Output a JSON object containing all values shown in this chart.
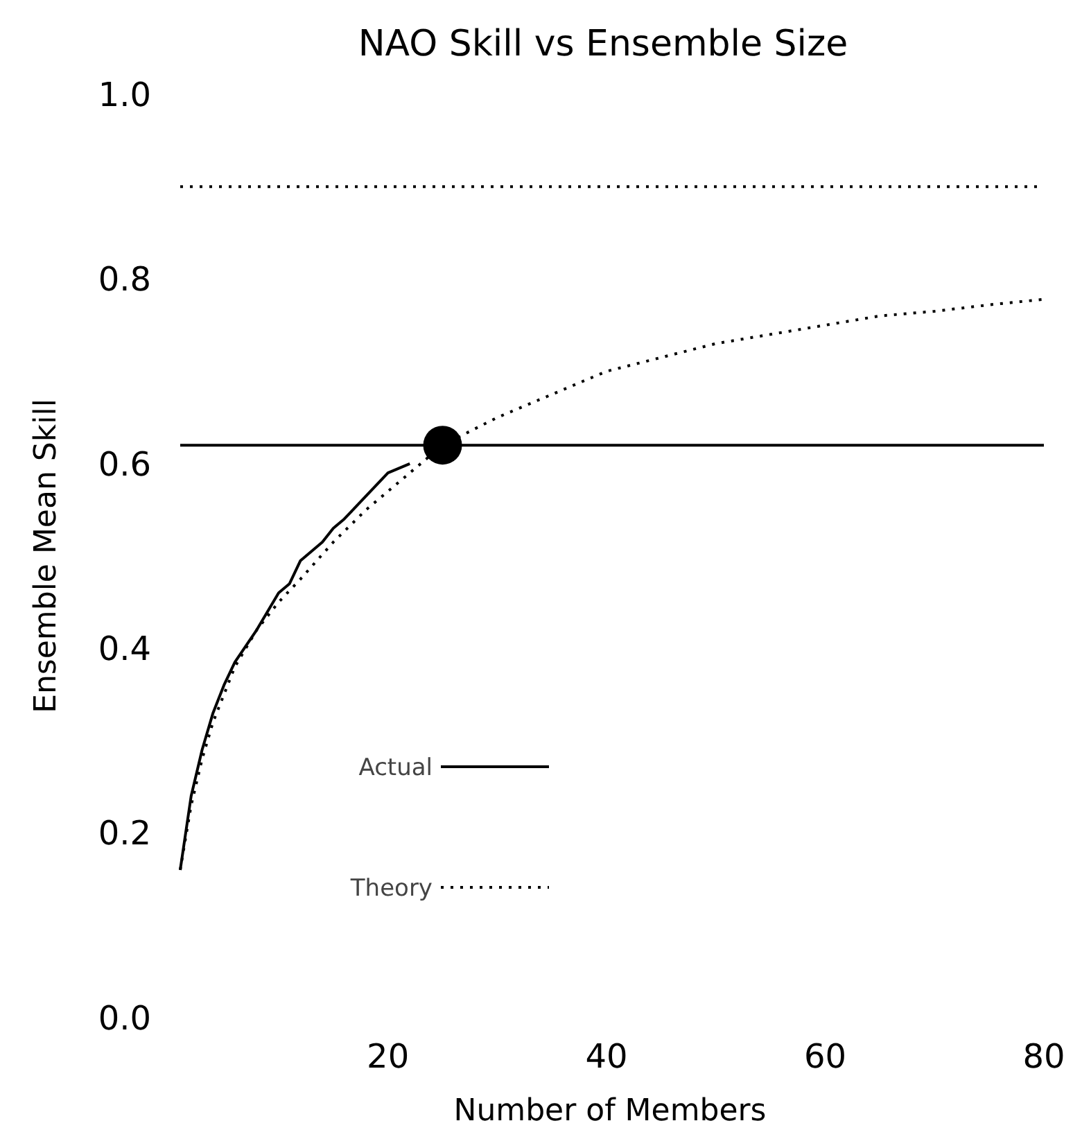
{
  "chart_data": {
    "type": "line",
    "title": "NAO Skill vs Ensemble Size",
    "xlabel": "Number of Members",
    "ylabel": "Ensemble Mean Skill",
    "xlim": [
      1,
      80
    ],
    "xticks": [
      20,
      40,
      60,
      80
    ],
    "ylim": [
      0,
      1
    ],
    "yticks": [
      {
        "value": 0,
        "label": "0.0"
      },
      {
        "value": 0.2,
        "label": "0.2"
      },
      {
        "value": 0.4,
        "label": "0.4"
      },
      {
        "value": 0.6,
        "label": "0.6"
      },
      {
        "value": 0.8,
        "label": "0.8"
      },
      {
        "value": 1,
        "label": "1.0"
      }
    ],
    "grid": false,
    "legend": "bottom left",
    "series": [
      {
        "name": "Actual",
        "color": "#000000",
        "line_style": "solid",
        "x": [
          1,
          2,
          3,
          4,
          5,
          6,
          8,
          10,
          11,
          12,
          14,
          15,
          16,
          18,
          20,
          22
        ],
        "values": [
          0.16,
          0.24,
          0.29,
          0.33,
          0.36,
          0.385,
          0.42,
          0.46,
          0.47,
          0.495,
          0.515,
          0.53,
          0.54,
          0.565,
          0.59,
          0.6
        ]
      },
      {
        "name": "Theory",
        "color": "#000000",
        "line_style": "dotted",
        "x": [
          1,
          2,
          3,
          4,
          6,
          8,
          10,
          12,
          15,
          18,
          21,
          25,
          30,
          35,
          40,
          45,
          50,
          55,
          60,
          65,
          70,
          75,
          80
        ],
        "values": [
          0.16,
          0.23,
          0.28,
          0.32,
          0.38,
          0.42,
          0.45,
          0.475,
          0.515,
          0.55,
          0.58,
          0.62,
          0.65,
          0.675,
          0.7,
          0.715,
          0.73,
          0.74,
          0.75,
          0.76,
          0.765,
          0.772,
          0.778
        ]
      },
      {
        "type": "scatter",
        "color": "#000000",
        "marker": "circle",
        "x": [
          25
        ],
        "values": [
          0.62
        ]
      }
    ],
    "ref_lines": [
      {
        "axis": "y",
        "value": 0.62,
        "line_style": "solid",
        "color": "#000000"
      },
      {
        "axis": "y",
        "value": 0.9,
        "line_style": "dotted",
        "color": "#000000"
      }
    ]
  }
}
